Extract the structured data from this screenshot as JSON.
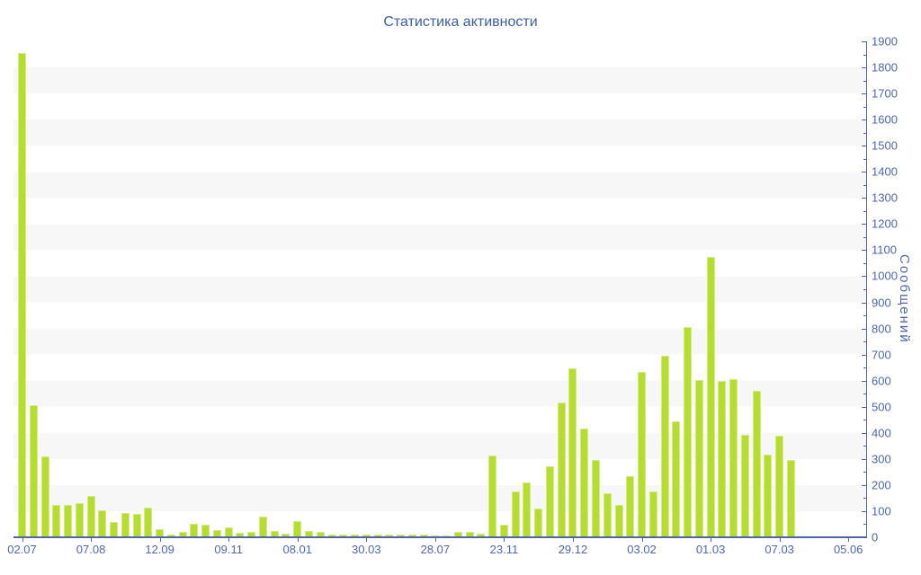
{
  "title": "Статистика активности",
  "colors": {
    "bar": "#b5dd30",
    "bar_edge": "#d6eb85",
    "axis": "#5265a8",
    "tick_text": "#4e66ad",
    "title_text": "#3f5ea1",
    "band": "#f7f7f8",
    "background": "#ffffff"
  },
  "chart_data": {
    "type": "bar",
    "title": "Статистика активности",
    "xlabel": "",
    "ylabel": "Сообщений",
    "ylim": [
      0,
      1900
    ],
    "y_major_step": 100,
    "y_minor_step": 50,
    "grid": "horizontal-bands",
    "legend": "none",
    "bar_color": "#b5dd30",
    "label_every": 6,
    "x_tick_labels": [
      "02.07",
      "07.08",
      "12.09",
      "09.11",
      "08.01",
      "30.03",
      "28.07",
      "23.11",
      "29.12",
      "03.02",
      "01.03",
      "07.03",
      "05.06"
    ],
    "values": [
      1855,
      505,
      310,
      125,
      125,
      130,
      160,
      105,
      60,
      92,
      90,
      115,
      30,
      10,
      20,
      52,
      48,
      27,
      37,
      17,
      21,
      80,
      25,
      14,
      63,
      23,
      20,
      9,
      9,
      11,
      9,
      11,
      9,
      11,
      9,
      11,
      6,
      6,
      20,
      20,
      14,
      312,
      49,
      175,
      211,
      109,
      271,
      518,
      646,
      418,
      295,
      169,
      125,
      233,
      632,
      176,
      695,
      444,
      805,
      604,
      1075,
      600,
      607,
      393,
      560,
      317,
      390,
      295,
      5,
      5,
      5,
      5,
      5,
      5
    ]
  }
}
